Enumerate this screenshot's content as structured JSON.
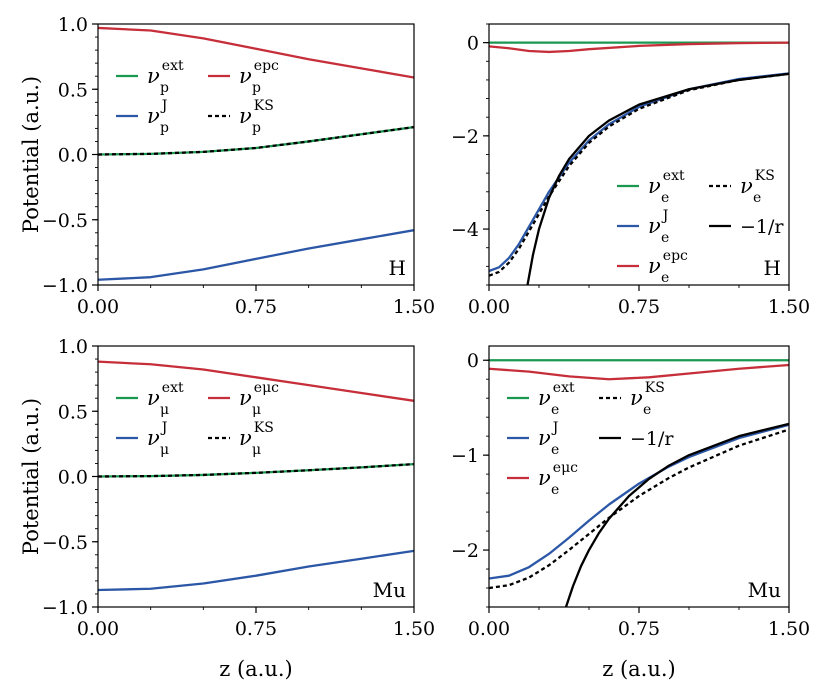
{
  "colors": {
    "ext": "#1a9850",
    "J": "#2b57a6",
    "pc": "#c62f3a",
    "KS": "#000000",
    "coulomb": "#000000"
  },
  "axis_labels": {
    "ylabel": "Potential (a.u.)",
    "xlabel": "z (a.u.)"
  },
  "chart_data": [
    {
      "type": "line",
      "panel": "top-left",
      "tag": "H",
      "xlim": [
        0,
        1.5
      ],
      "ylim": [
        -1.0,
        1.0
      ],
      "xticks": [
        "0.00",
        "0.75",
        "1.50"
      ],
      "xtick_values": [
        0,
        0.75,
        1.5
      ],
      "yticks": [
        "1.0",
        "0.5",
        "0.0",
        "−0.5",
        "−1.0"
      ],
      "ytick_values": [
        1.0,
        0.5,
        0.0,
        -0.5,
        -1.0
      ],
      "show_xlabel": false,
      "show_ylabel": true,
      "legend_position": "upper-left",
      "legend": [
        {
          "key": "ext",
          "base": "ν",
          "sub": "p",
          "sup": "ext"
        },
        {
          "key": "pc",
          "base": "ν",
          "sub": "p",
          "sup": "epc"
        },
        {
          "key": "J",
          "base": "ν",
          "sub": "p",
          "sup": "J"
        },
        {
          "key": "KS",
          "base": "ν",
          "sub": "p",
          "sup": "KS"
        }
      ],
      "series": [
        {
          "key": "pc",
          "name": "epc",
          "x": [
            0,
            0.25,
            0.5,
            0.75,
            1.0,
            1.25,
            1.5
          ],
          "y": [
            0.97,
            0.95,
            0.89,
            0.81,
            0.73,
            0.66,
            0.59
          ]
        },
        {
          "key": "J",
          "name": "J",
          "x": [
            0,
            0.25,
            0.5,
            0.75,
            1.0,
            1.25,
            1.5
          ],
          "y": [
            -0.96,
            -0.94,
            -0.88,
            -0.8,
            -0.72,
            -0.65,
            -0.58
          ]
        },
        {
          "key": "ext",
          "name": "ext",
          "x": [
            0,
            0.25,
            0.5,
            0.75,
            1.0,
            1.25,
            1.5
          ],
          "y": [
            0.0,
            0.005,
            0.02,
            0.05,
            0.1,
            0.155,
            0.21
          ]
        },
        {
          "key": "KS",
          "name": "KS",
          "x": [
            0,
            0.25,
            0.5,
            0.75,
            1.0,
            1.25,
            1.5
          ],
          "y": [
            0.0,
            0.005,
            0.02,
            0.05,
            0.1,
            0.155,
            0.21
          ]
        }
      ]
    },
    {
      "type": "line",
      "panel": "top-right",
      "tag": "H",
      "xlim": [
        0,
        1.5
      ],
      "ylim": [
        -5.2,
        0.4
      ],
      "xticks": [
        "0.00",
        "0.75",
        "1.50"
      ],
      "xtick_values": [
        0,
        0.75,
        1.5
      ],
      "yticks": [
        "0",
        "−2",
        "−4"
      ],
      "ytick_values": [
        0,
        -2,
        -4
      ],
      "show_xlabel": false,
      "show_ylabel": false,
      "legend_position": "lower-right",
      "legend": [
        {
          "key": "ext",
          "base": "ν",
          "sub": "e",
          "sup": "ext"
        },
        {
          "key": "KS",
          "base": "ν",
          "sub": "e",
          "sup": "KS"
        },
        {
          "key": "J",
          "base": "ν",
          "sub": "e",
          "sup": "J"
        },
        {
          "key": "coulomb",
          "base": "−1/r"
        },
        {
          "key": "pc",
          "base": "ν",
          "sub": "e",
          "sup": "epc"
        }
      ],
      "series": [
        {
          "key": "ext",
          "name": "ext",
          "x": [
            0,
            1.5
          ],
          "y": [
            0,
            0
          ]
        },
        {
          "key": "pc",
          "name": "epc",
          "x": [
            0,
            0.1,
            0.2,
            0.3,
            0.4,
            0.5,
            0.75,
            1.0,
            1.25,
            1.5
          ],
          "y": [
            -0.08,
            -0.12,
            -0.18,
            -0.2,
            -0.18,
            -0.14,
            -0.07,
            -0.03,
            -0.01,
            0.0
          ]
        },
        {
          "key": "J",
          "name": "J",
          "x": [
            0,
            0.05,
            0.1,
            0.15,
            0.2,
            0.3,
            0.4,
            0.5,
            0.6,
            0.75,
            1.0,
            1.25,
            1.5
          ],
          "y": [
            -4.9,
            -4.82,
            -4.62,
            -4.32,
            -3.95,
            -3.2,
            -2.58,
            -2.1,
            -1.75,
            -1.38,
            -1.0,
            -0.78,
            -0.66
          ]
        },
        {
          "key": "KS",
          "name": "KS",
          "x": [
            0,
            0.05,
            0.1,
            0.15,
            0.2,
            0.3,
            0.4,
            0.5,
            0.6,
            0.75,
            1.0,
            1.25,
            1.5
          ],
          "y": [
            -5.0,
            -4.92,
            -4.72,
            -4.42,
            -4.05,
            -3.3,
            -2.65,
            -2.15,
            -1.8,
            -1.42,
            -1.02,
            -0.8,
            -0.67
          ]
        },
        {
          "key": "coulomb",
          "name": "-1/r",
          "x": [
            0.19,
            0.22,
            0.25,
            0.3,
            0.35,
            0.4,
            0.5,
            0.6,
            0.75,
            1.0,
            1.25,
            1.5
          ],
          "y": [
            -5.26,
            -4.55,
            -4.0,
            -3.33,
            -2.86,
            -2.5,
            -2.0,
            -1.67,
            -1.33,
            -1.0,
            -0.8,
            -0.67
          ]
        }
      ]
    },
    {
      "type": "line",
      "panel": "bottom-left",
      "tag": "Mu",
      "xlim": [
        0,
        1.5
      ],
      "ylim": [
        -1.0,
        1.0
      ],
      "xticks": [
        "0.00",
        "0.75",
        "1.50"
      ],
      "xtick_values": [
        0,
        0.75,
        1.5
      ],
      "yticks": [
        "1.0",
        "0.5",
        "0.0",
        "−0.5",
        "−1.0"
      ],
      "ytick_values": [
        1.0,
        0.5,
        0.0,
        -0.5,
        -1.0
      ],
      "show_xlabel": true,
      "show_ylabel": true,
      "legend_position": "upper-left",
      "legend": [
        {
          "key": "ext",
          "base": "ν",
          "sub": "μ",
          "sup": "ext"
        },
        {
          "key": "pc",
          "base": "ν",
          "sub": "μ",
          "sup": "eμc"
        },
        {
          "key": "J",
          "base": "ν",
          "sub": "μ",
          "sup": "J"
        },
        {
          "key": "KS",
          "base": "ν",
          "sub": "μ",
          "sup": "KS"
        }
      ],
      "series": [
        {
          "key": "pc",
          "name": "eμc",
          "x": [
            0,
            0.25,
            0.5,
            0.75,
            1.0,
            1.25,
            1.5
          ],
          "y": [
            0.88,
            0.86,
            0.82,
            0.76,
            0.7,
            0.64,
            0.58
          ]
        },
        {
          "key": "J",
          "name": "J",
          "x": [
            0,
            0.25,
            0.5,
            0.75,
            1.0,
            1.25,
            1.5
          ],
          "y": [
            -0.87,
            -0.86,
            -0.82,
            -0.76,
            -0.69,
            -0.63,
            -0.57
          ]
        },
        {
          "key": "ext",
          "name": "ext",
          "x": [
            0,
            0.25,
            0.5,
            0.75,
            1.0,
            1.25,
            1.5
          ],
          "y": [
            0.0,
            0.003,
            0.012,
            0.028,
            0.048,
            0.07,
            0.095
          ]
        },
        {
          "key": "KS",
          "name": "KS",
          "x": [
            0,
            0.25,
            0.5,
            0.75,
            1.0,
            1.25,
            1.5
          ],
          "y": [
            0.0,
            0.003,
            0.012,
            0.028,
            0.048,
            0.07,
            0.095
          ]
        }
      ]
    },
    {
      "type": "line",
      "panel": "bottom-right",
      "tag": "Mu",
      "xlim": [
        0,
        1.5
      ],
      "ylim": [
        -2.6,
        0.15
      ],
      "xticks": [
        "0.00",
        "0.75",
        "1.50"
      ],
      "xtick_values": [
        0,
        0.75,
        1.5
      ],
      "yticks": [
        "0",
        "−1",
        "−2"
      ],
      "ytick_values": [
        0,
        -1,
        -2
      ],
      "show_xlabel": true,
      "show_ylabel": false,
      "legend_position": "upper-left",
      "legend": [
        {
          "key": "ext",
          "base": "ν",
          "sub": "e",
          "sup": "ext"
        },
        {
          "key": "KS",
          "base": "ν",
          "sub": "e",
          "sup": "KS"
        },
        {
          "key": "J",
          "base": "ν",
          "sub": "e",
          "sup": "J"
        },
        {
          "key": "coulomb",
          "base": "−1/r"
        },
        {
          "key": "pc",
          "base": "ν",
          "sub": "e",
          "sup": "eμc"
        }
      ],
      "series": [
        {
          "key": "ext",
          "name": "ext",
          "x": [
            0,
            1.5
          ],
          "y": [
            0,
            0
          ]
        },
        {
          "key": "pc",
          "name": "eμc",
          "x": [
            0,
            0.2,
            0.4,
            0.6,
            0.8,
            1.0,
            1.25,
            1.5
          ],
          "y": [
            -0.09,
            -0.12,
            -0.17,
            -0.2,
            -0.18,
            -0.14,
            -0.09,
            -0.05
          ]
        },
        {
          "key": "J",
          "name": "J",
          "x": [
            0,
            0.1,
            0.2,
            0.3,
            0.4,
            0.5,
            0.6,
            0.75,
            0.9,
            1.0,
            1.25,
            1.5
          ],
          "y": [
            -2.3,
            -2.27,
            -2.18,
            -2.04,
            -1.87,
            -1.69,
            -1.52,
            -1.3,
            -1.12,
            -1.02,
            -0.82,
            -0.68
          ]
        },
        {
          "key": "KS",
          "name": "KS",
          "x": [
            0,
            0.1,
            0.2,
            0.3,
            0.4,
            0.5,
            0.6,
            0.75,
            0.9,
            1.0,
            1.25,
            1.5
          ],
          "y": [
            -2.4,
            -2.37,
            -2.29,
            -2.16,
            -2.0,
            -1.83,
            -1.66,
            -1.43,
            -1.24,
            -1.13,
            -0.9,
            -0.73
          ]
        },
        {
          "key": "coulomb",
          "name": "-1/r",
          "x": [
            0.385,
            0.42,
            0.46,
            0.5,
            0.55,
            0.6,
            0.7,
            0.8,
            0.9,
            1.0,
            1.25,
            1.5
          ],
          "y": [
            -2.6,
            -2.38,
            -2.17,
            -2.0,
            -1.82,
            -1.67,
            -1.43,
            -1.25,
            -1.11,
            -1.0,
            -0.8,
            -0.67
          ]
        }
      ]
    }
  ]
}
